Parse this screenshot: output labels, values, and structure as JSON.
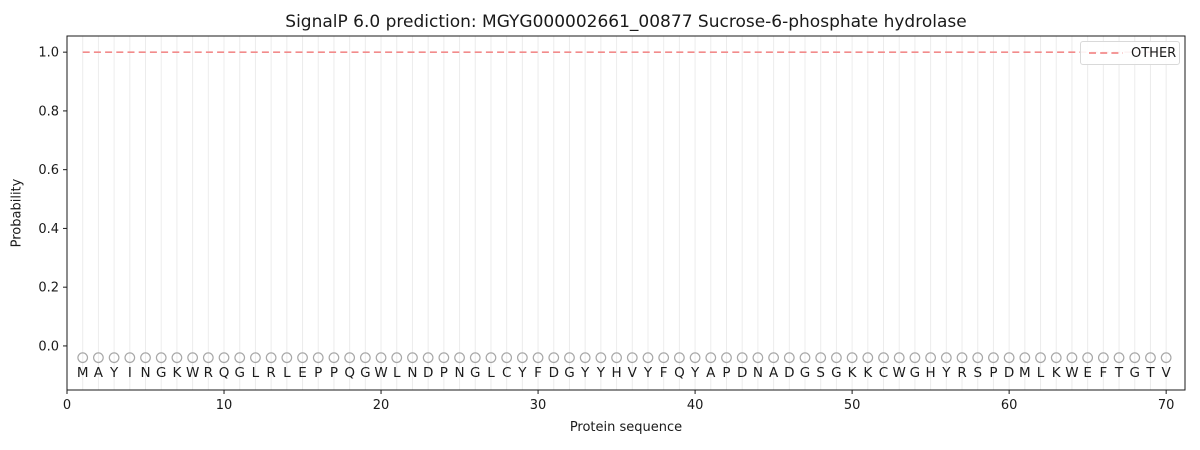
{
  "chart_data": {
    "type": "line",
    "title": "SignalP 6.0 prediction: MGYG000002661_00877 Sucrose-6-phosphate hydrolase",
    "xlabel": "Protein sequence",
    "ylabel": "Probability",
    "xlim": [
      0,
      71.2
    ],
    "ylim": [
      -0.15,
      1.055
    ],
    "x_ticks": [
      0,
      10,
      20,
      30,
      40,
      50,
      60,
      70
    ],
    "y_ticks": [
      0.0,
      0.2,
      0.4,
      0.6,
      0.8,
      1.0
    ],
    "grid": {
      "vertical_per_residue": true,
      "color": "#ececec"
    },
    "axis_color": "#1a1a1a",
    "legend": {
      "position": "upper right",
      "entries": [
        {
          "label": "OTHER",
          "color": "#f28b8b",
          "linestyle": "dashed"
        }
      ]
    },
    "series": [
      {
        "name": "OTHER",
        "color": "#f28b8b",
        "linestyle": "dashed",
        "linewidth": 1.7,
        "x_start": 1,
        "x_end": 70,
        "values": [
          1,
          1,
          1,
          1,
          1,
          1,
          1,
          1,
          1,
          1,
          1,
          1,
          1,
          1,
          1,
          1,
          1,
          1,
          1,
          1,
          1,
          1,
          1,
          1,
          1,
          1,
          1,
          1,
          1,
          1,
          1,
          1,
          1,
          1,
          1,
          1,
          1,
          1,
          1,
          1,
          1,
          1,
          1,
          1,
          1,
          1,
          1,
          1,
          1,
          1,
          1,
          1,
          1,
          1,
          1,
          1,
          1,
          1,
          1,
          1,
          1,
          1,
          1,
          1,
          1,
          1,
          1,
          1,
          1,
          1
        ]
      }
    ],
    "sequence": {
      "letters": "MAYINGKWRQGLRLEPPQGWLNDPNGLCYFDGYYHVYFQYAPDNADGSGKKCWGHYRSPDMLKWEFTGTV",
      "first_position": 1,
      "marker": {
        "shape": "circle",
        "y": -0.04,
        "edge_color": "#a8a8a8"
      },
      "letter_y": -0.09,
      "letter_color": "#1c1c1c"
    }
  }
}
